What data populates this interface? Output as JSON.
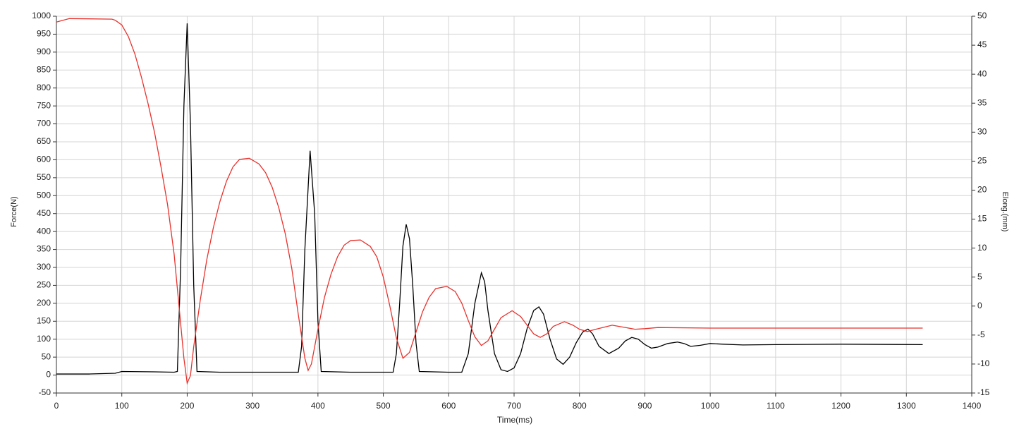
{
  "chart_data": {
    "type": "line",
    "xlabel": "Time(ms)",
    "ylabel": "Force(N)",
    "y2label": "Elong.(mm)",
    "xlim": [
      0,
      1400
    ],
    "xticks": [
      0,
      100,
      200,
      300,
      400,
      500,
      600,
      700,
      800,
      900,
      1000,
      1100,
      1200,
      1300,
      1400
    ],
    "ylim": [
      -50,
      1000
    ],
    "yticks": [
      -50,
      0,
      50,
      100,
      150,
      200,
      250,
      300,
      350,
      400,
      450,
      500,
      550,
      600,
      650,
      700,
      750,
      800,
      850,
      900,
      950,
      1000
    ],
    "y2lim": [
      -15,
      50
    ],
    "y2ticks": [
      -15,
      -10,
      -5,
      0,
      5,
      10,
      15,
      20,
      25,
      30,
      35,
      40,
      45,
      50
    ],
    "grid": true,
    "series": [
      {
        "color": "#000000",
        "axis": "y",
        "x": [
          0,
          50,
          90,
          100,
          150,
          180,
          185,
          190,
          195,
          200,
          205,
          210,
          215,
          250,
          300,
          350,
          370,
          375,
          380,
          388,
          395,
          400,
          405,
          450,
          500,
          515,
          520,
          525,
          530,
          535,
          540,
          545,
          550,
          555,
          600,
          620,
          630,
          640,
          650,
          655,
          660,
          670,
          680,
          690,
          700,
          710,
          720,
          730,
          738,
          745,
          755,
          765,
          775,
          785,
          795,
          805,
          813,
          820,
          830,
          845,
          860,
          870,
          880,
          890,
          900,
          910,
          920,
          935,
          950,
          960,
          970,
          985,
          1000,
          1020,
          1050,
          1100,
          1200,
          1325
        ],
        "values": [
          3,
          3,
          5,
          10,
          9,
          8,
          10,
          300,
          750,
          980,
          700,
          250,
          10,
          8,
          8,
          8,
          8,
          80,
          350,
          625,
          450,
          150,
          10,
          8,
          8,
          8,
          60,
          200,
          360,
          420,
          380,
          250,
          90,
          10,
          8,
          8,
          60,
          200,
          285,
          260,
          180,
          60,
          15,
          10,
          20,
          60,
          130,
          180,
          190,
          170,
          100,
          45,
          30,
          50,
          90,
          120,
          128,
          115,
          80,
          60,
          75,
          95,
          105,
          100,
          85,
          75,
          78,
          88,
          92,
          88,
          80,
          83,
          88,
          86,
          84,
          85,
          86,
          85
        ]
      },
      {
        "color": "#e8322d",
        "axis": "y2",
        "x": [
          0,
          20,
          85,
          90,
          100,
          110,
          120,
          130,
          140,
          150,
          160,
          170,
          180,
          190,
          195,
          200,
          205,
          210,
          220,
          230,
          240,
          250,
          260,
          270,
          280,
          295,
          310,
          320,
          330,
          340,
          350,
          360,
          370,
          380,
          385,
          390,
          400,
          410,
          420,
          430,
          440,
          450,
          465,
          480,
          490,
          500,
          510,
          520,
          530,
          540,
          550,
          560,
          570,
          580,
          597,
          610,
          620,
          630,
          640,
          650,
          660,
          670,
          680,
          697,
          710,
          720,
          730,
          740,
          750,
          760,
          777,
          790,
          800,
          812,
          825,
          850,
          870,
          885,
          900,
          920,
          1000,
          1100,
          1200,
          1325
        ],
        "values": [
          49,
          49.6,
          49.5,
          49.3,
          48.5,
          46.5,
          43.5,
          39.5,
          35,
          30,
          24,
          17.5,
          9,
          -3,
          -9,
          -13.3,
          -12,
          -7,
          1,
          8,
          13.5,
          18,
          21.5,
          24,
          25.3,
          25.5,
          24.5,
          23,
          20.5,
          17,
          12.5,
          6.5,
          -1.5,
          -9,
          -11.1,
          -10,
          -4,
          1.5,
          5.5,
          8.5,
          10.5,
          11.3,
          11.4,
          10.3,
          8.5,
          5,
          0,
          -5.5,
          -9,
          -8,
          -4.5,
          -1,
          1.5,
          3,
          3.4,
          2.5,
          0.5,
          -2.5,
          -5.3,
          -6.8,
          -6,
          -4,
          -2,
          -0.8,
          -1.8,
          -3.3,
          -4.8,
          -5.4,
          -4.8,
          -3.5,
          -2.7,
          -3.3,
          -4,
          -4.4,
          -4,
          -3.3,
          -3.7,
          -4,
          -3.9,
          -3.7,
          -3.8,
          -3.8,
          -3.8,
          -3.8
        ]
      }
    ]
  }
}
